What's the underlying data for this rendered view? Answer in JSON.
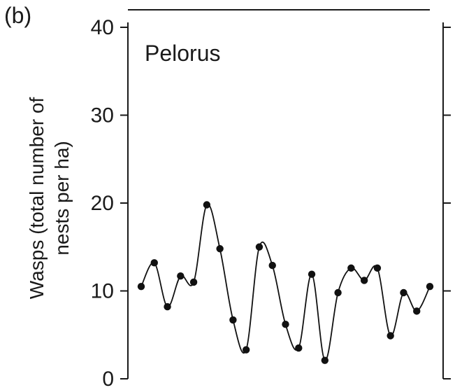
{
  "panel_label": "(b)",
  "chart_data": {
    "type": "line",
    "title": "Pelorus",
    "ylabel_lines": [
      "Wasps (total number of",
      "nests per ha)"
    ],
    "xlabel": "",
    "ylim": [
      0,
      40
    ],
    "yticks": [
      0,
      10,
      20,
      30,
      40
    ],
    "series": [
      {
        "values": [
          10.5,
          13.2,
          8.2,
          11.7,
          11.0,
          19.8,
          14.8,
          6.7,
          3.3,
          15.0,
          12.9,
          6.2,
          3.5,
          11.9,
          2.1,
          9.8,
          12.6,
          11.2,
          12.6,
          4.9,
          9.8,
          7.7,
          10.5
        ]
      }
    ],
    "smooth": true,
    "markers": "filled-circle",
    "grid": false
  }
}
